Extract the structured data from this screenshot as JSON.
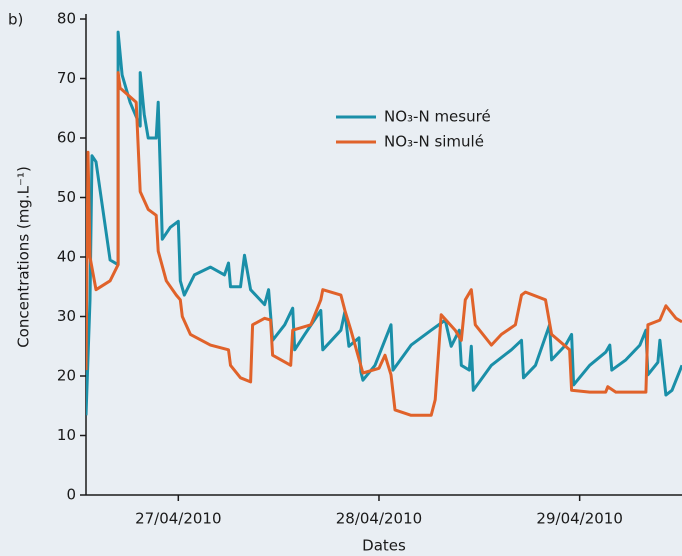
{
  "chart_data": {
    "type": "line",
    "panel_label": "b)",
    "xlabel": "Dates",
    "ylabel": "Concentrations (mg.L⁻¹)",
    "xlim": [
      26.54,
      29.51
    ],
    "xticks": [
      {
        "value": 27,
        "label": "27/04/2010"
      },
      {
        "value": 28,
        "label": "28/04/2010"
      },
      {
        "value": 29,
        "label": "29/04/2010"
      }
    ],
    "ylim": [
      0,
      80
    ],
    "yticks": [
      0,
      10,
      20,
      30,
      40,
      50,
      60,
      70,
      80
    ],
    "legend": "upper right",
    "series": [
      {
        "name": "NO₃-N mesuré",
        "color": "#1a8fa8",
        "x": [
          26.54,
          26.56,
          26.57,
          26.59,
          26.66,
          26.7,
          26.7,
          26.72,
          26.76,
          26.81,
          26.81,
          26.83,
          26.85,
          26.89,
          26.9,
          26.91,
          26.92,
          26.96,
          27.0,
          27.01,
          27.03,
          27.08,
          27.16,
          27.23,
          27.25,
          27.26,
          27.31,
          27.33,
          27.36,
          27.43,
          27.45,
          27.47,
          27.53,
          27.57,
          27.58,
          27.63,
          27.71,
          27.72,
          27.81,
          27.83,
          27.85,
          27.9,
          27.91,
          27.92,
          27.98,
          28.06,
          28.07,
          28.16,
          28.26,
          28.33,
          28.36,
          28.4,
          28.41,
          28.45,
          28.46,
          28.47,
          28.56,
          28.66,
          28.71,
          28.72,
          28.78,
          28.85,
          28.86,
          28.93,
          28.96,
          28.97,
          29.05,
          29.13,
          29.15,
          29.16,
          29.23,
          29.3,
          29.33,
          29.34,
          29.39,
          29.4,
          29.43,
          29.46,
          29.51
        ],
        "values": [
          13.4,
          32.8,
          57,
          56,
          39.5,
          38.7,
          77.8,
          70.6,
          66,
          62,
          71,
          64,
          60,
          60,
          66,
          55,
          43,
          45,
          46,
          36,
          33.6,
          37,
          38.3,
          37,
          39,
          35,
          35,
          40.3,
          34.5,
          32,
          34.5,
          26,
          28.6,
          31.4,
          24.4,
          27,
          31,
          24.4,
          27.7,
          30.8,
          25,
          26.4,
          20.7,
          19.3,
          21.8,
          28.6,
          21,
          25.2,
          27.7,
          29.4,
          25,
          27.7,
          21.8,
          21,
          25,
          17.6,
          21.8,
          24.4,
          26,
          19.7,
          21.8,
          28.6,
          22.7,
          25.2,
          27,
          18.5,
          21.8,
          24,
          25.2,
          21,
          22.7,
          25.2,
          27.7,
          20.2,
          22.3,
          26,
          16.8,
          17.6,
          21.8
        ]
      },
      {
        "name": "NO₃-N simulé",
        "color": "#e0622a",
        "x": [
          26.54,
          26.55,
          26.56,
          26.59,
          26.66,
          26.7,
          26.7,
          26.71,
          26.79,
          26.81,
          26.85,
          26.89,
          26.9,
          26.94,
          26.99,
          27.01,
          27.02,
          27.06,
          27.16,
          27.25,
          27.26,
          27.31,
          27.36,
          27.37,
          27.43,
          27.46,
          27.47,
          27.56,
          27.57,
          27.66,
          27.71,
          27.72,
          27.81,
          27.83,
          27.86,
          27.92,
          28.0,
          28.03,
          28.06,
          28.08,
          28.16,
          28.26,
          28.28,
          28.31,
          28.38,
          28.41,
          28.43,
          28.46,
          28.48,
          28.56,
          28.61,
          28.68,
          28.71,
          28.73,
          28.83,
          28.86,
          28.95,
          28.96,
          29.05,
          29.13,
          29.14,
          29.18,
          29.33,
          29.34,
          29.4,
          29.43,
          29.48,
          29.51
        ],
        "values": [
          21,
          57.6,
          40,
          34.5,
          36,
          38.7,
          71,
          68.4,
          66,
          51,
          48,
          47,
          41,
          36,
          33.6,
          32.8,
          30,
          27,
          25.2,
          24.4,
          21.8,
          19.7,
          19,
          28.6,
          29.7,
          29.4,
          23.5,
          21.8,
          27.7,
          28.6,
          32.8,
          34.5,
          33.6,
          31,
          27.7,
          20.5,
          21.3,
          23.5,
          20.2,
          14.3,
          13.4,
          13.4,
          16,
          30.3,
          27.7,
          26,
          32.8,
          34.5,
          28.6,
          25.2,
          27,
          28.6,
          33.6,
          34.1,
          32.8,
          27,
          24.4,
          17.6,
          17.3,
          17.3,
          18.2,
          17.3,
          17.3,
          28.6,
          29.4,
          31.8,
          29.7,
          29.1
        ]
      }
    ]
  }
}
